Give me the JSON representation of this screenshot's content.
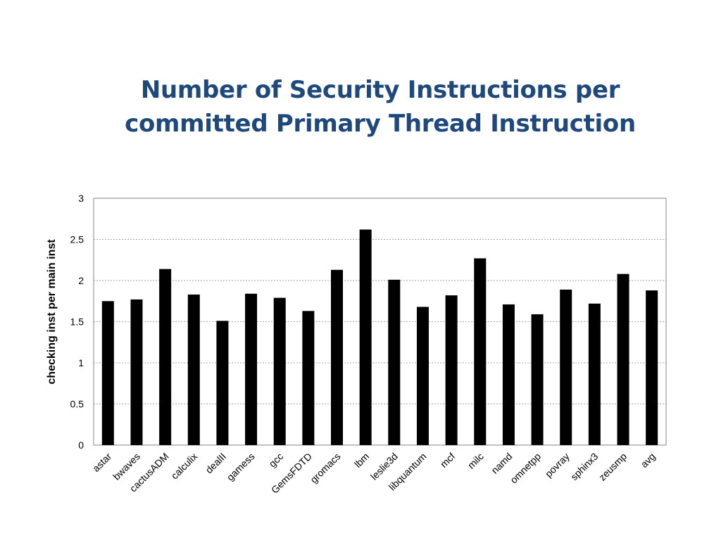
{
  "slide": {
    "title_line1": "Number of Security Instructions per",
    "title_line2": "committed Primary Thread Instruction"
  },
  "chart_data": {
    "type": "bar",
    "title": "",
    "xlabel": "",
    "ylabel": "checking inst per main inst",
    "ylim": [
      0,
      3
    ],
    "yticks": [
      0,
      0.5,
      1,
      1.5,
      2,
      2.5,
      3
    ],
    "grid": true,
    "legend": "none",
    "bar_color": "#000000",
    "categories": [
      "astar",
      "bwaves",
      "cactusADM",
      "calculix",
      "dealII",
      "gamess",
      "gcc",
      "GemsFDTD",
      "gromacs",
      "lbm",
      "leslie3d",
      "libquantum",
      "mcf",
      "milc",
      "namd",
      "omnetpp",
      "povray",
      "sphinx3",
      "zeusmp",
      "avg"
    ],
    "values": [
      1.75,
      1.77,
      2.14,
      1.83,
      1.51,
      1.84,
      1.79,
      1.63,
      2.13,
      2.62,
      2.01,
      1.68,
      1.82,
      2.27,
      1.71,
      1.59,
      1.89,
      1.72,
      2.08,
      1.88
    ]
  }
}
